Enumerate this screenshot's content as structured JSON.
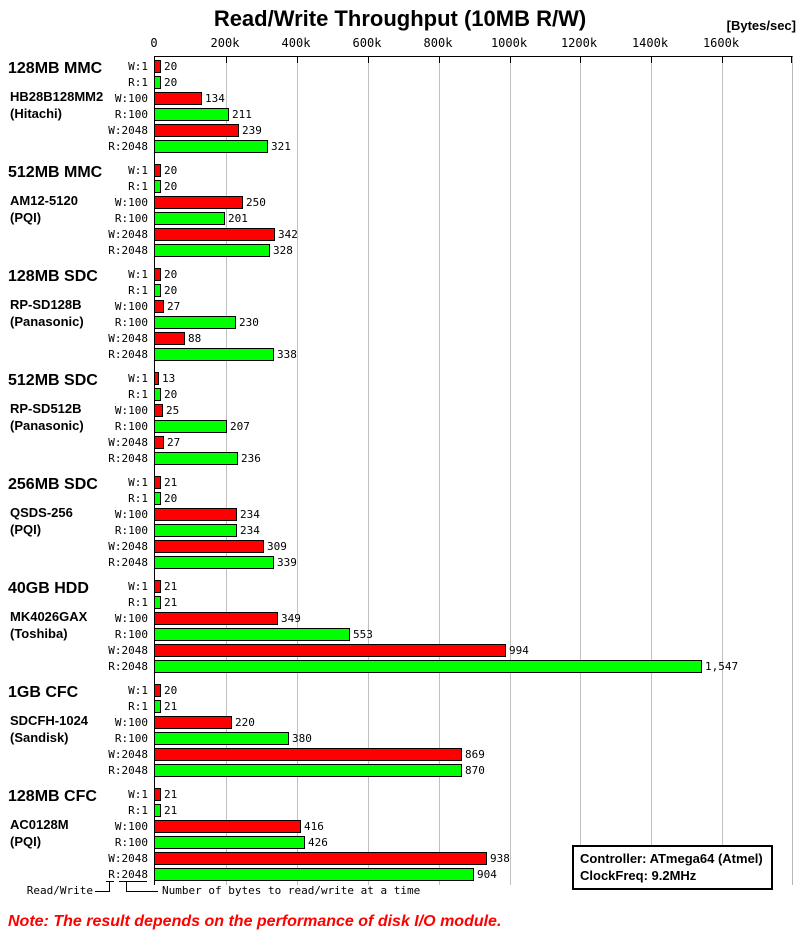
{
  "title": "Read/Write Throughput (10MB R/W)",
  "unit_label": "[Bytes/sec]",
  "legend": {
    "read_write": "Read/Write",
    "bytes_at_a_time": "Number of bytes to read/write at a time"
  },
  "controller_box": {
    "line1": "Controller: ATmega64 (Atmel)",
    "line2": "ClockFreq: 9.2MHz"
  },
  "note": "Note: The result depends on the performance of disk I/O module.",
  "chart_data": {
    "type": "bar",
    "orientation": "horizontal",
    "title": "Read/Write Throughput (10MB R/W)",
    "xlabel_unit": "Bytes/sec",
    "x_ticks": [
      "0",
      "200k",
      "400k",
      "600k",
      "800k",
      "1000k",
      "1200k",
      "1400k",
      "1600k"
    ],
    "x_max_k": 1600,
    "grid": true,
    "bar_categories": [
      "W:1",
      "R:1",
      "W:100",
      "R:100",
      "W:2048",
      "R:2048"
    ],
    "series_colors": {
      "write": "#ff0000",
      "read": "#00ff00"
    },
    "groups": [
      {
        "device": "128MB MMC",
        "model": "HB28B128MM2",
        "vendor": "(Hitachi)",
        "values_k": [
          20,
          20,
          134,
          211,
          239,
          321
        ],
        "labels": [
          "20",
          "20",
          "134",
          "211",
          "239",
          "321"
        ]
      },
      {
        "device": "512MB MMC",
        "model": "AM12-5120",
        "vendor": "(PQI)",
        "values_k": [
          20,
          20,
          250,
          201,
          342,
          328
        ],
        "labels": [
          "20",
          "20",
          "250",
          "201",
          "342",
          "328"
        ]
      },
      {
        "device": "128MB SDC",
        "model": "RP-SD128B",
        "vendor": "(Panasonic)",
        "values_k": [
          20,
          20,
          27,
          230,
          88,
          338
        ],
        "labels": [
          "20",
          "20",
          "27",
          "230",
          "88",
          "338"
        ]
      },
      {
        "device": "512MB SDC",
        "model": "RP-SD512B",
        "vendor": "(Panasonic)",
        "values_k": [
          13,
          20,
          25,
          207,
          27,
          236
        ],
        "labels": [
          "13",
          "20",
          "25",
          "207",
          "27",
          "236"
        ]
      },
      {
        "device": "256MB SDC",
        "model": "QSDS-256",
        "vendor": "(PQI)",
        "values_k": [
          21,
          20,
          234,
          234,
          309,
          339
        ],
        "labels": [
          "21",
          "20",
          "234",
          "234",
          "309",
          "339"
        ]
      },
      {
        "device": "40GB HDD",
        "model": "MK4026GAX",
        "vendor": "(Toshiba)",
        "values_k": [
          21,
          21,
          349,
          553,
          994,
          1547
        ],
        "labels": [
          "21",
          "21",
          "349",
          "553",
          "994",
          "1,547"
        ]
      },
      {
        "device": "1GB CFC",
        "model": "SDCFH-1024",
        "vendor": "(Sandisk)",
        "values_k": [
          20,
          21,
          220,
          380,
          869,
          870
        ],
        "labels": [
          "20",
          "21",
          "220",
          "380",
          "869",
          "870"
        ]
      },
      {
        "device": "128MB CFC",
        "model": "AC0128M",
        "vendor": "(PQI)",
        "values_k": [
          21,
          21,
          416,
          426,
          938,
          904
        ],
        "labels": [
          "21",
          "21",
          "416",
          "426",
          "938",
          "904"
        ]
      }
    ]
  }
}
